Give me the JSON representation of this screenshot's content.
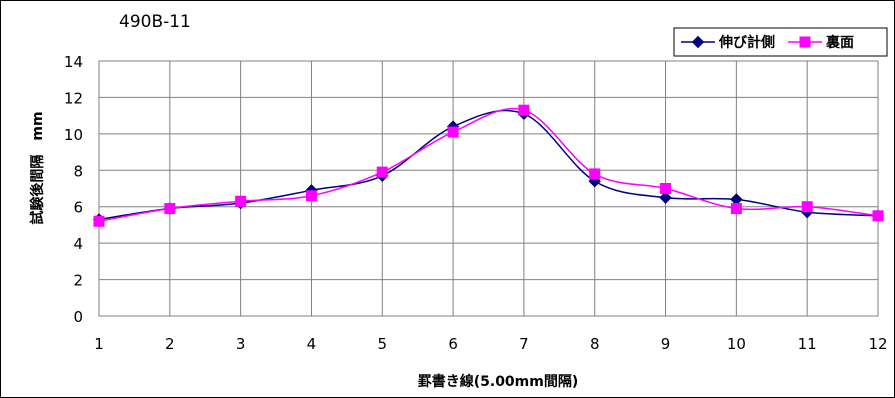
{
  "chart_data": {
    "type": "line",
    "title": "490B-11",
    "xlabel": "罫書き線(5.00mm間隔)",
    "ylabel": "試験後間隔　mm",
    "x": [
      1,
      2,
      3,
      4,
      5,
      6,
      7,
      8,
      9,
      10,
      11,
      12
    ],
    "xlim": [
      1,
      12
    ],
    "ylim": [
      0,
      14
    ],
    "yticks": [
      0,
      2,
      4,
      6,
      8,
      10,
      12,
      14
    ],
    "grid": true,
    "legend_position": "top-right",
    "series": [
      {
        "name": "伸び計側",
        "marker": "diamond",
        "color": "#000080",
        "values": [
          5.3,
          5.9,
          6.2,
          6.9,
          7.7,
          10.4,
          11.1,
          7.4,
          6.5,
          6.4,
          5.7,
          5.5
        ]
      },
      {
        "name": "裏面",
        "marker": "square",
        "color": "#ff00ff",
        "values": [
          5.2,
          5.9,
          6.3,
          6.6,
          7.9,
          10.1,
          11.3,
          7.8,
          7.0,
          5.9,
          6.0,
          5.5
        ]
      }
    ]
  }
}
